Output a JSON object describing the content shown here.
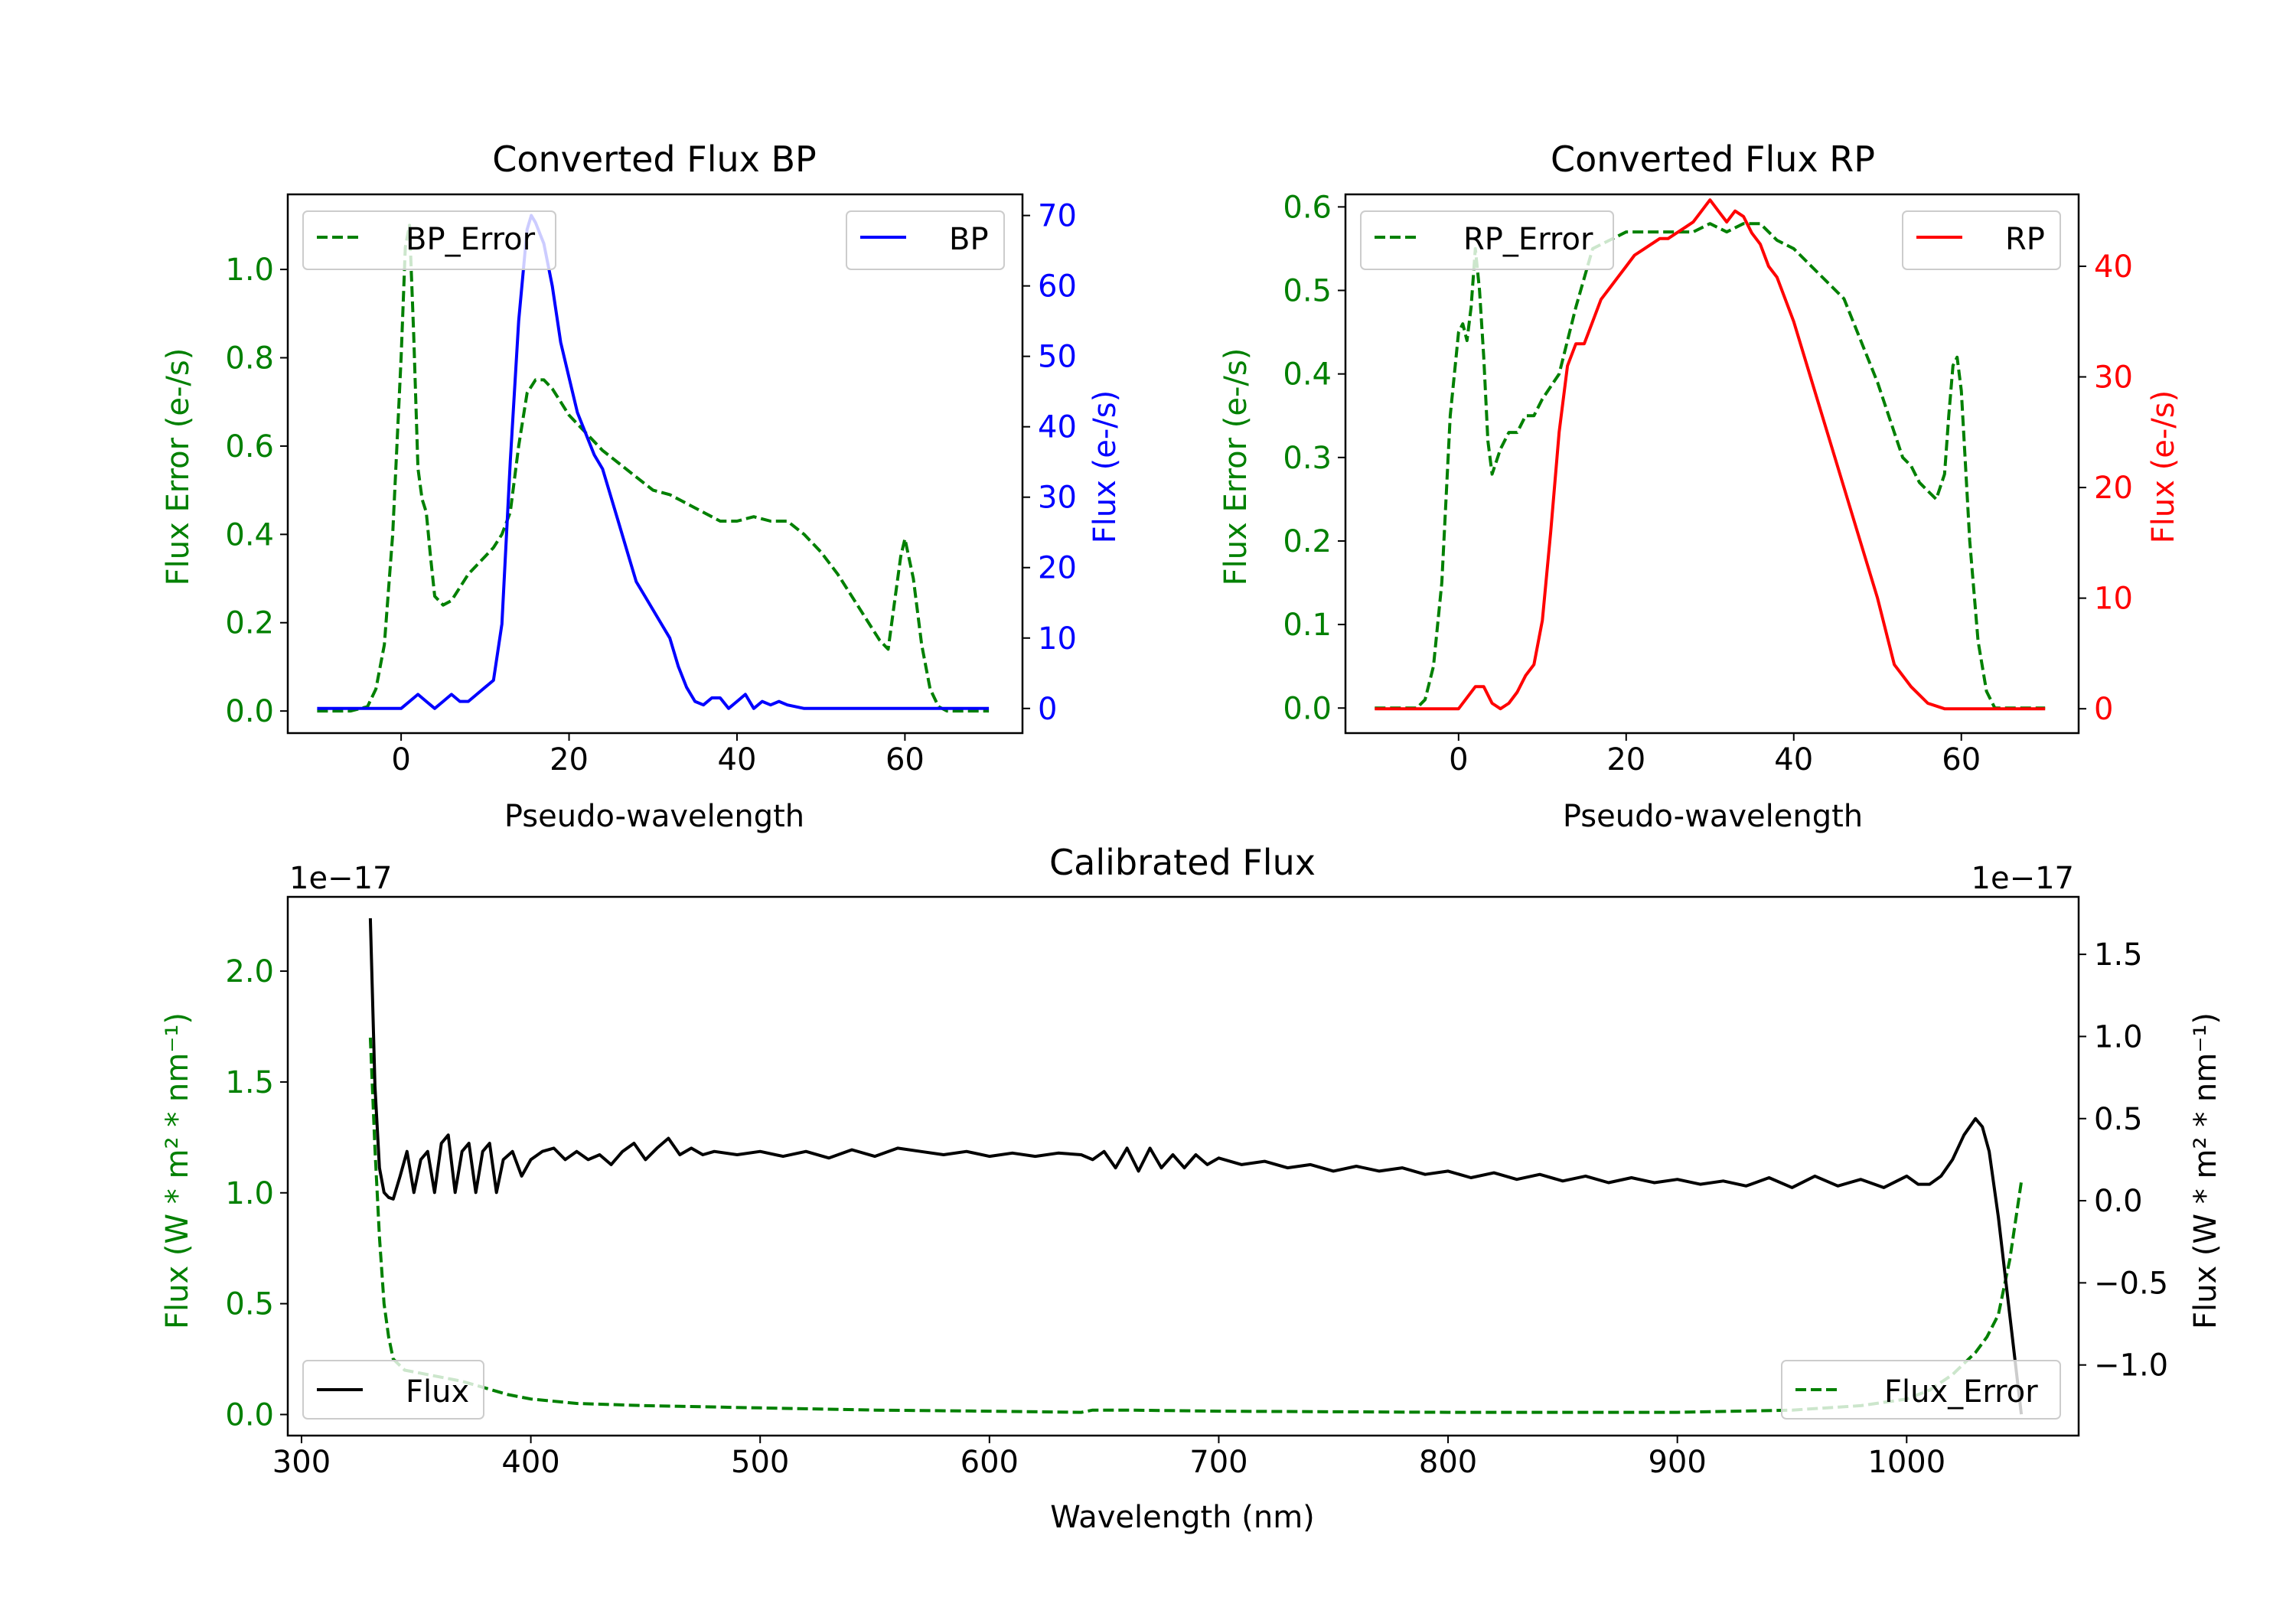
{
  "colors": {
    "axis": "#000000",
    "green": "#008000",
    "blue": "#0000ff",
    "red": "#ff0000",
    "black": "#000000"
  },
  "chart_data": [
    {
      "id": "bp",
      "type": "line",
      "title": "Converted Flux BP",
      "xlabel": "Pseudo-wavelength",
      "xlim": [
        -13.5,
        74
      ],
      "xticks": [
        0,
        20,
        40,
        60
      ],
      "left_axis": {
        "label": "Flux Error (e-/s)",
        "color": "#008000",
        "lim": [
          -0.05,
          1.17
        ],
        "ticks": [
          0.0,
          0.2,
          0.4,
          0.6,
          0.8,
          1.0
        ],
        "tick_labels": [
          "0.0",
          "0.2",
          "0.4",
          "0.6",
          "0.8",
          "1.0"
        ]
      },
      "right_axis": {
        "label": "Flux (e-/s)",
        "color": "#0000ff",
        "lim": [
          -3.5,
          73
        ],
        "ticks": [
          0,
          10,
          20,
          30,
          40,
          50,
          60,
          70
        ],
        "tick_labels": [
          "0",
          "10",
          "20",
          "30",
          "40",
          "50",
          "60",
          "70"
        ]
      },
      "series": [
        {
          "name": "BP_Error",
          "axis": "left",
          "color": "#008000",
          "dash": true,
          "x": [
            -10,
            -6,
            -4,
            -3,
            -2,
            -1,
            0,
            0.5,
            1,
            1.5,
            2,
            2.5,
            3,
            3.5,
            4,
            5,
            6,
            7,
            8,
            9,
            10,
            11,
            12,
            13,
            14,
            15,
            16,
            17,
            18,
            19,
            20,
            22,
            24,
            26,
            28,
            30,
            32,
            34,
            36,
            38,
            40,
            42,
            44,
            46,
            48,
            50,
            52,
            54,
            56,
            57,
            58,
            59,
            59.5,
            60,
            61,
            62,
            63,
            64,
            65,
            70
          ],
          "y": [
            0,
            0,
            0.01,
            0.05,
            0.15,
            0.4,
            0.8,
            1.05,
            1.1,
            0.85,
            0.55,
            0.48,
            0.45,
            0.35,
            0.26,
            0.24,
            0.25,
            0.28,
            0.31,
            0.33,
            0.35,
            0.37,
            0.4,
            0.45,
            0.6,
            0.72,
            0.75,
            0.75,
            0.73,
            0.7,
            0.67,
            0.63,
            0.59,
            0.56,
            0.53,
            0.5,
            0.49,
            0.47,
            0.45,
            0.43,
            0.43,
            0.44,
            0.43,
            0.43,
            0.4,
            0.36,
            0.31,
            0.25,
            0.19,
            0.16,
            0.14,
            0.28,
            0.35,
            0.39,
            0.3,
            0.15,
            0.05,
            0.01,
            0,
            0
          ]
        },
        {
          "name": "BP",
          "axis": "right",
          "color": "#0000ff",
          "dash": false,
          "x": [
            -10,
            -5,
            -2,
            0,
            1,
            2,
            3,
            4,
            5,
            6,
            7,
            8,
            9,
            10,
            11,
            12,
            13,
            14,
            15,
            15.5,
            16,
            17,
            18,
            19,
            20,
            21,
            22,
            23,
            24,
            25,
            26,
            27,
            28,
            29,
            30,
            31,
            32,
            33,
            34,
            35,
            36,
            37,
            38,
            39,
            40,
            41,
            42,
            43,
            44,
            45,
            46,
            48,
            50,
            55,
            60,
            65,
            70
          ],
          "y": [
            0,
            0,
            0,
            0,
            1,
            2,
            1,
            0,
            1,
            2,
            1,
            1,
            2,
            3,
            4,
            12,
            35,
            55,
            68,
            70,
            69,
            66,
            60,
            52,
            47,
            42,
            39,
            36,
            34,
            30,
            26,
            22,
            18,
            16,
            14,
            12,
            10,
            6,
            3,
            1,
            0.5,
            1.5,
            1.5,
            0,
            1,
            2,
            0,
            1,
            0.5,
            1,
            0.5,
            0,
            0,
            0,
            0,
            0,
            0
          ]
        }
      ],
      "legends": {
        "left": "BP_Error",
        "right": "BP"
      }
    },
    {
      "id": "rp",
      "type": "line",
      "title": "Converted Flux RP",
      "xlabel": "Pseudo-wavelength",
      "xlim": [
        -13.5,
        74
      ],
      "xticks": [
        0,
        20,
        40,
        60
      ],
      "left_axis": {
        "label": "Flux Error (e-/s)",
        "color": "#008000",
        "lim": [
          -0.03,
          0.615
        ],
        "ticks": [
          0.0,
          0.1,
          0.2,
          0.3,
          0.4,
          0.5,
          0.6
        ],
        "tick_labels": [
          "0.0",
          "0.1",
          "0.2",
          "0.3",
          "0.4",
          "0.5",
          "0.6"
        ]
      },
      "right_axis": {
        "label": "Flux (e-/s)",
        "color": "#ff0000",
        "lim": [
          -2.2,
          46.5
        ],
        "ticks": [
          0,
          10,
          20,
          30,
          40
        ],
        "tick_labels": [
          "0",
          "10",
          "20",
          "30",
          "40"
        ]
      },
      "series": [
        {
          "name": "RP_Error",
          "axis": "left",
          "color": "#008000",
          "dash": true,
          "x": [
            -10,
            -5,
            -4,
            -3,
            -2,
            -1,
            0,
            0.5,
            1,
            1.5,
            2,
            2.5,
            3,
            3.5,
            4,
            5,
            6,
            7,
            8,
            9,
            10,
            12,
            14,
            16,
            18,
            20,
            22,
            24,
            26,
            28,
            30,
            32,
            34,
            36,
            38,
            40,
            42,
            44,
            46,
            48,
            50,
            52,
            53,
            54,
            55,
            56,
            57,
            58,
            58.5,
            59,
            59.5,
            60,
            61,
            62,
            63,
            64,
            65,
            70
          ],
          "y": [
            0,
            0,
            0.01,
            0.05,
            0.15,
            0.35,
            0.45,
            0.46,
            0.44,
            0.48,
            0.55,
            0.5,
            0.42,
            0.32,
            0.28,
            0.31,
            0.33,
            0.33,
            0.35,
            0.35,
            0.37,
            0.4,
            0.48,
            0.55,
            0.56,
            0.57,
            0.57,
            0.57,
            0.57,
            0.57,
            0.58,
            0.57,
            0.58,
            0.58,
            0.56,
            0.55,
            0.53,
            0.51,
            0.49,
            0.44,
            0.39,
            0.33,
            0.3,
            0.29,
            0.27,
            0.26,
            0.25,
            0.28,
            0.35,
            0.41,
            0.42,
            0.38,
            0.2,
            0.08,
            0.02,
            0,
            0,
            0
          ]
        },
        {
          "name": "RP",
          "axis": "right",
          "color": "#ff0000",
          "dash": false,
          "x": [
            -10,
            -5,
            0,
            1,
            2,
            3,
            4,
            5,
            6,
            7,
            8,
            9,
            10,
            11,
            12,
            13,
            14,
            15,
            16,
            17,
            18,
            19,
            20,
            21,
            22,
            23,
            24,
            25,
            26,
            27,
            28,
            29,
            30,
            31,
            32,
            33,
            34,
            35,
            36,
            37,
            38,
            40,
            42,
            44,
            46,
            48,
            50,
            52,
            54,
            56,
            58,
            60,
            65,
            70
          ],
          "y": [
            0,
            0,
            0,
            1,
            2,
            2,
            0.5,
            0,
            0.5,
            1.5,
            3,
            4,
            8,
            16,
            25,
            31,
            33,
            33,
            35,
            37,
            38,
            39,
            40,
            41,
            41.5,
            42,
            42.5,
            42.5,
            43,
            43.5,
            44,
            45,
            46,
            45,
            44,
            45,
            44.5,
            43,
            42,
            40,
            39,
            35,
            30,
            25,
            20,
            15,
            10,
            4,
            2,
            0.5,
            0,
            0,
            0,
            0
          ]
        }
      ],
      "legends": {
        "left": "RP_Error",
        "right": "RP"
      }
    },
    {
      "id": "cal",
      "type": "line",
      "title": "Calibrated Flux",
      "xlabel": "Wavelength (nm)",
      "xlim": [
        294,
        1075
      ],
      "xticks": [
        300,
        400,
        500,
        600,
        700,
        800,
        900,
        1000
      ],
      "left_axis": {
        "label": "Flux (W * m² * nm⁻¹)",
        "color": "#008000",
        "lim": [
          -0.095,
          2.335
        ],
        "ticks": [
          0.0,
          0.5,
          1.0,
          1.5,
          2.0
        ],
        "tick_labels": [
          "0.0",
          "0.5",
          "1.0",
          "1.5",
          "2.0"
        ],
        "offset": "1e−17"
      },
      "right_axis": {
        "label": "Flux (W * m² * nm⁻¹)",
        "color": "#000000",
        "lim": [
          -1.43,
          1.85
        ],
        "ticks": [
          -1.0,
          -0.5,
          0.0,
          0.5,
          1.0,
          1.5
        ],
        "tick_labels": [
          "−1.0",
          "−0.5",
          "0.0",
          "0.5",
          "1.0",
          "1.5"
        ],
        "offset": "1e−17"
      },
      "series": [
        {
          "name": "Flux_Error",
          "axis": "left",
          "color": "#008000",
          "dash": true,
          "x": [
            330,
            332,
            334,
            336,
            338,
            340,
            345,
            350,
            360,
            370,
            380,
            390,
            400,
            420,
            450,
            500,
            550,
            600,
            640,
            645,
            660,
            700,
            800,
            900,
            950,
            980,
            1000,
            1010,
            1020,
            1030,
            1035,
            1040,
            1045,
            1050
          ],
          "y": [
            1.7,
            1.2,
            0.8,
            0.5,
            0.35,
            0.25,
            0.2,
            0.19,
            0.17,
            0.15,
            0.12,
            0.09,
            0.07,
            0.05,
            0.04,
            0.03,
            0.02,
            0.015,
            0.01,
            0.02,
            0.02,
            0.015,
            0.01,
            0.01,
            0.02,
            0.04,
            0.07,
            0.11,
            0.18,
            0.28,
            0.35,
            0.45,
            0.7,
            1.05
          ]
        },
        {
          "name": "Flux",
          "axis": "right",
          "color": "#000000",
          "dash": false,
          "x": [
            330,
            332,
            334,
            336,
            338,
            340,
            343,
            346,
            349,
            352,
            355,
            358,
            361,
            364,
            367,
            370,
            373,
            376,
            379,
            382,
            385,
            388,
            392,
            396,
            400,
            405,
            410,
            415,
            420,
            425,
            430,
            435,
            440,
            445,
            450,
            455,
            460,
            465,
            470,
            475,
            480,
            490,
            500,
            510,
            520,
            530,
            540,
            550,
            560,
            570,
            580,
            590,
            600,
            610,
            620,
            630,
            640,
            645,
            650,
            655,
            660,
            665,
            670,
            675,
            680,
            685,
            690,
            695,
            700,
            710,
            720,
            730,
            740,
            750,
            760,
            770,
            780,
            790,
            800,
            810,
            820,
            830,
            840,
            850,
            860,
            870,
            880,
            890,
            900,
            910,
            920,
            930,
            940,
            950,
            960,
            970,
            980,
            990,
            1000,
            1005,
            1010,
            1015,
            1020,
            1025,
            1030,
            1033,
            1036,
            1040,
            1045,
            1050
          ],
          "y": [
            1.72,
            0.7,
            0.2,
            0.05,
            0.02,
            0.01,
            0.15,
            0.3,
            0.05,
            0.25,
            0.3,
            0.05,
            0.35,
            0.4,
            0.05,
            0.3,
            0.35,
            0.05,
            0.3,
            0.35,
            0.05,
            0.25,
            0.3,
            0.15,
            0.25,
            0.3,
            0.32,
            0.25,
            0.3,
            0.25,
            0.28,
            0.22,
            0.3,
            0.35,
            0.25,
            0.32,
            0.38,
            0.28,
            0.32,
            0.28,
            0.3,
            0.28,
            0.3,
            0.27,
            0.3,
            0.26,
            0.31,
            0.27,
            0.32,
            0.3,
            0.28,
            0.3,
            0.27,
            0.29,
            0.27,
            0.29,
            0.28,
            0.25,
            0.3,
            0.2,
            0.32,
            0.18,
            0.32,
            0.2,
            0.28,
            0.2,
            0.28,
            0.22,
            0.26,
            0.22,
            0.24,
            0.2,
            0.22,
            0.18,
            0.21,
            0.18,
            0.2,
            0.16,
            0.18,
            0.14,
            0.17,
            0.13,
            0.16,
            0.12,
            0.15,
            0.11,
            0.14,
            0.11,
            0.13,
            0.1,
            0.12,
            0.09,
            0.14,
            0.08,
            0.15,
            0.09,
            0.13,
            0.08,
            0.15,
            0.1,
            0.1,
            0.15,
            0.25,
            0.4,
            0.5,
            0.45,
            0.3,
            -0.1,
            -0.7,
            -1.3
          ]
        }
      ],
      "legends": {
        "left": "Flux",
        "right": "Flux_Error"
      }
    }
  ]
}
